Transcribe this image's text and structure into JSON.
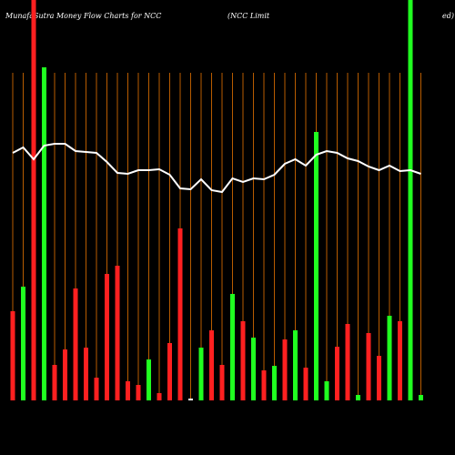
{
  "chart_data": {
    "type": "bar",
    "title": "MunafaSutra  Money Flow  Charts for NCC",
    "subtitle": "(NCC Limit",
    "subtitle_end": "ed)",
    "ylim": [
      0,
      440
    ],
    "grid_color": "#b85c00",
    "values": [
      98,
      125,
      440,
      366,
      39,
      56,
      123,
      58,
      25,
      139,
      148,
      21,
      17,
      45,
      8,
      63,
      189,
      2,
      58,
      77,
      39,
      117,
      87,
      69,
      33,
      38,
      67,
      77,
      36,
      295,
      21,
      59,
      84,
      6,
      74,
      49,
      93,
      87,
      440,
      6
    ],
    "colors": [
      "#ff2020",
      "#20ff20",
      "#ff2020",
      "#20ff20",
      "#ff2020",
      "#ff2020",
      "#ff2020",
      "#ff2020",
      "#ff2020",
      "#ff2020",
      "#ff2020",
      "#ff2020",
      "#ff2020",
      "#20ff20",
      "#ff2020",
      "#ff2020",
      "#ff2020",
      "#ffffff",
      "#20ff20",
      "#ff2020",
      "#ff2020",
      "#20ff20",
      "#ff2020",
      "#20ff20",
      "#ff2020",
      "#20ff20",
      "#ff2020",
      "#20ff20",
      "#ff2020",
      "#20ff20",
      "#20ff20",
      "#ff2020",
      "#ff2020",
      "#20ff20",
      "#ff2020",
      "#ff2020",
      "#20ff20",
      "#ff2020",
      "#20ff20",
      "#20ff20"
    ],
    "line": {
      "color": "#ffffff",
      "values": [
        272,
        278,
        265,
        280,
        282,
        282,
        274,
        273,
        272,
        262,
        250,
        249,
        253,
        253,
        254,
        248,
        233,
        232,
        243,
        231,
        229,
        244,
        240,
        244,
        243,
        248,
        260,
        265,
        258,
        270,
        274,
        272,
        266,
        263,
        257,
        253,
        258,
        252,
        253,
        249
      ]
    }
  }
}
